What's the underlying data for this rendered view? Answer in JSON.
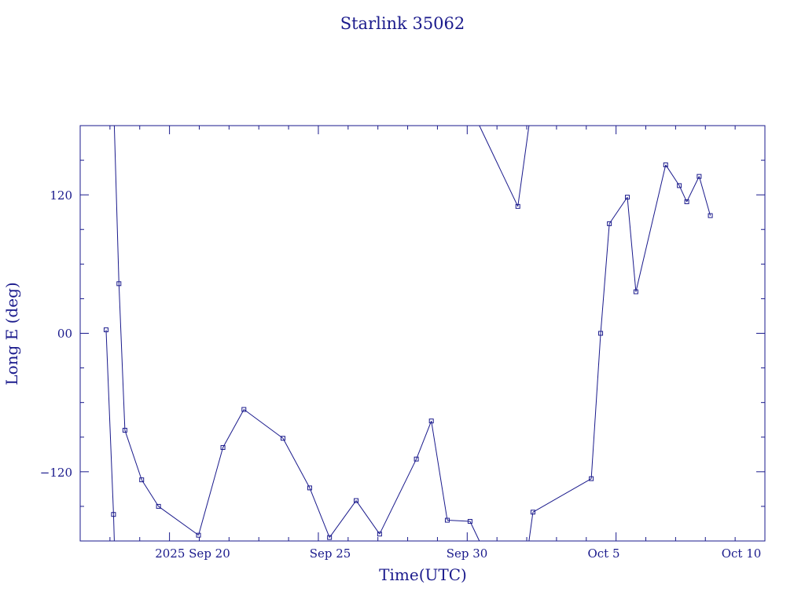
{
  "chart_data": {
    "type": "line",
    "title": "Starlink 35062",
    "xlabel": "Time(UTC)",
    "ylabel": "Long E (deg)",
    "x_ticks": [
      "2025 Sep 20",
      "Sep 25",
      "Sep 30",
      "Oct  5",
      "Oct 10"
    ],
    "y_ticks": [
      "120",
      "00",
      "−120"
    ],
    "xlim": [
      "2025-09-17",
      "2025-10-10"
    ],
    "ylim": [
      -180,
      180
    ],
    "grid": false,
    "marker": "square",
    "color": "#1a1a8c",
    "x": [
      "2025-09-17T20:53",
      "2025-09-18T02:53",
      "2025-09-18T07:14",
      "2025-09-18T12:03",
      "2025-09-19T01:34",
      "2025-09-19T15:08",
      "2025-09-20T23:24",
      "2025-09-21T19:04",
      "2025-09-22T12:00",
      "2025-09-23T19:30",
      "2025-09-24T17:02",
      "2025-09-25T09:00",
      "2025-09-26T06:28",
      "2025-09-27T01:23",
      "2025-09-28T07:00",
      "2025-09-28T19:06",
      "2025-09-29T07:57",
      "2025-09-30T02:17",
      "2025-10-01T16:50",
      "2025-10-02T05:00",
      "2025-10-04T04:02",
      "2025-10-04T11:35",
      "2025-10-04T18:36",
      "2025-10-05T09:07",
      "2025-10-05T16:00",
      "2025-10-06T16:00",
      "2025-10-07T03:00",
      "2025-10-07T09:00",
      "2025-10-07T19:00",
      "2025-10-08T04:00"
    ],
    "y": [
      3,
      -157,
      43,
      -84,
      -127,
      -150,
      -175,
      -99,
      -66,
      -91,
      -134,
      -177,
      -145,
      -174,
      -109,
      -76,
      -162,
      -163,
      110,
      -155,
      -126,
      0,
      95,
      118,
      36,
      146,
      128,
      114,
      136,
      102
    ]
  }
}
